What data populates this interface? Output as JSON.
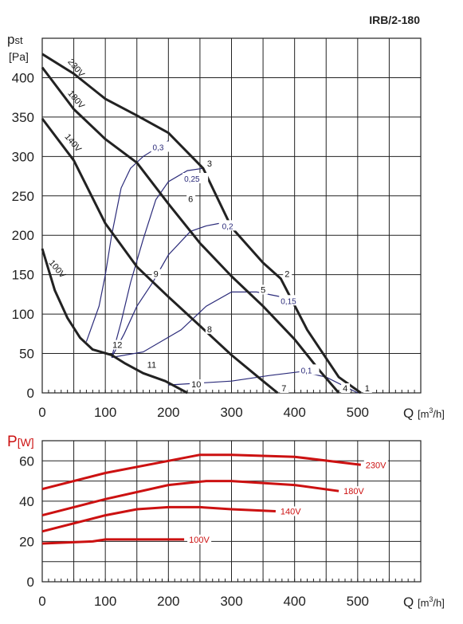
{
  "model_label": "IRB/2-180",
  "chart_data": [
    {
      "type": "line",
      "ylabel_main": "p",
      "ylabel_sub": "st",
      "yunit": "[Pa]",
      "xlabel": "Q [m³/h]",
      "xlabel_q": "Q",
      "xlabel_unit": "[m",
      "xlabel_exp": "3",
      "xlabel_tail": "/h]",
      "xlim": [
        0,
        600
      ],
      "ylim": [
        0,
        450
      ],
      "xticks": [
        0,
        100,
        200,
        300,
        400,
        500
      ],
      "yticks": [
        0,
        50,
        100,
        150,
        200,
        250,
        300,
        350,
        400
      ],
      "grid": true,
      "fan_curves": [
        {
          "name": "230V",
          "color": "#222222",
          "points": [
            [
              0,
              430
            ],
            [
              50,
              405
            ],
            [
              100,
              373
            ],
            [
              150,
              352
            ],
            [
              200,
              330
            ],
            [
              255,
              285
            ],
            [
              300,
              210
            ],
            [
              350,
              165
            ],
            [
              378,
              145
            ],
            [
              420,
              80
            ],
            [
              470,
              20
            ],
            [
              505,
              0
            ]
          ]
        },
        {
          "name": "180V",
          "color": "#222222",
          "points": [
            [
              0,
              413
            ],
            [
              50,
              360
            ],
            [
              100,
              322
            ],
            [
              150,
              292
            ],
            [
              200,
              240
            ],
            [
              250,
              190
            ],
            [
              300,
              148
            ],
            [
              350,
              110
            ],
            [
              400,
              68
            ],
            [
              440,
              28
            ],
            [
              470,
              0
            ]
          ]
        },
        {
          "name": "140V",
          "color": "#222222",
          "points": [
            [
              0,
              348
            ],
            [
              50,
              295
            ],
            [
              100,
              215
            ],
            [
              150,
              160
            ],
            [
              200,
              122
            ],
            [
              250,
              85
            ],
            [
              300,
              48
            ],
            [
              350,
              15
            ],
            [
              373,
              0
            ]
          ]
        },
        {
          "name": "100V",
          "color": "#222222",
          "points": [
            [
              0,
              183
            ],
            [
              20,
              130
            ],
            [
              40,
              95
            ],
            [
              60,
              70
            ],
            [
              80,
              55
            ],
            [
              110,
              48
            ],
            [
              130,
              38
            ],
            [
              160,
              25
            ],
            [
              195,
              15
            ],
            [
              230,
              0
            ]
          ]
        }
      ],
      "system_curves": [
        {
          "name": "0,1",
          "color": "#2b2b7a",
          "points": [
            [
              200,
              10
            ],
            [
              240,
              12
            ],
            [
              300,
              15
            ],
            [
              360,
              22
            ],
            [
              410,
              27
            ],
            [
              450,
              20
            ],
            [
              500,
              0
            ]
          ]
        },
        {
          "name": "0,15",
          "color": "#2b2b7a",
          "points": [
            [
              110,
              45
            ],
            [
              160,
              52
            ],
            [
              220,
              80
            ],
            [
              260,
              110
            ],
            [
              300,
              128
            ],
            [
              340,
              128
            ],
            [
              378,
              122
            ]
          ]
        },
        {
          "name": "0,2",
          "color": "#2b2b7a",
          "points": [
            [
              110,
              45
            ],
            [
              130,
              75
            ],
            [
              150,
              110
            ],
            [
              175,
              140
            ],
            [
              200,
              175
            ],
            [
              235,
              205
            ],
            [
              260,
              212
            ],
            [
              280,
              215
            ]
          ]
        },
        {
          "name": "0,25",
          "color": "#2b2b7a",
          "points": [
            [
              110,
              45
            ],
            [
              125,
              90
            ],
            [
              140,
              140
            ],
            [
              160,
              195
            ],
            [
              180,
              245
            ],
            [
              200,
              268
            ],
            [
              230,
              282
            ],
            [
              255,
              285
            ]
          ]
        },
        {
          "name": "0,3",
          "color": "#2b2b7a",
          "points": [
            [
              70,
              65
            ],
            [
              90,
              110
            ],
            [
              100,
              150
            ],
            [
              110,
              200
            ],
            [
              125,
              260
            ],
            [
              140,
              285
            ],
            [
              160,
              300
            ],
            [
              200,
              320
            ]
          ]
        }
      ],
      "system_labels": [
        {
          "text": "0,1",
          "x": 410,
          "y": 27
        },
        {
          "text": "0,15",
          "x": 378,
          "y": 115
        },
        {
          "text": "0,2",
          "x": 285,
          "y": 210
        },
        {
          "text": "0,25",
          "x": 225,
          "y": 270
        },
        {
          "text": "0,3",
          "x": 175,
          "y": 310
        }
      ],
      "voltage_labels": [
        {
          "text": "230V",
          "x": 40,
          "y": 420
        },
        {
          "text": "180V",
          "x": 40,
          "y": 380
        },
        {
          "text": "140V",
          "x": 35,
          "y": 325
        },
        {
          "text": "100V",
          "x": 10,
          "y": 165
        }
      ],
      "operating_points": [
        {
          "label": "1",
          "x": 505,
          "y": 0
        },
        {
          "label": "2",
          "x": 378,
          "y": 145
        },
        {
          "label": "3",
          "x": 255,
          "y": 285
        },
        {
          "label": "4",
          "x": 470,
          "y": 0
        },
        {
          "label": "5",
          "x": 340,
          "y": 125
        },
        {
          "label": "6",
          "x": 225,
          "y": 240
        },
        {
          "label": "7",
          "x": 373,
          "y": 0
        },
        {
          "label": "8",
          "x": 255,
          "y": 75
        },
        {
          "label": "9",
          "x": 170,
          "y": 145
        },
        {
          "label": "10",
          "x": 230,
          "y": 5
        },
        {
          "label": "11",
          "x": 160,
          "y": 30
        },
        {
          "label": "12",
          "x": 105,
          "y": 55
        }
      ]
    },
    {
      "type": "line",
      "ylabel_main": "P",
      "yunit": "[W]",
      "xlabel": "Q [m³/h]",
      "xlim": [
        0,
        600
      ],
      "ylim": [
        0,
        70
      ],
      "xticks": [
        0,
        100,
        200,
        300,
        400,
        500
      ],
      "yticks": [
        0,
        20,
        40,
        60
      ],
      "grid": true,
      "power_curves": [
        {
          "name": "230V",
          "color": "#cc1111",
          "points": [
            [
              0,
              46
            ],
            [
              100,
              54
            ],
            [
              200,
              60
            ],
            [
              250,
              63
            ],
            [
              300,
              63
            ],
            [
              400,
              62
            ],
            [
              505,
              58
            ]
          ]
        },
        {
          "name": "180V",
          "color": "#cc1111",
          "points": [
            [
              0,
              33
            ],
            [
              100,
              41
            ],
            [
              200,
              48
            ],
            [
              260,
              50
            ],
            [
              300,
              50
            ],
            [
              400,
              48
            ],
            [
              470,
              45
            ]
          ]
        },
        {
          "name": "140V",
          "color": "#cc1111",
          "points": [
            [
              0,
              25
            ],
            [
              100,
              33
            ],
            [
              150,
              36
            ],
            [
              200,
              37
            ],
            [
              250,
              37
            ],
            [
              300,
              36
            ],
            [
              370,
              35
            ]
          ]
        },
        {
          "name": "100V",
          "color": "#cc1111",
          "points": [
            [
              0,
              19
            ],
            [
              80,
              20
            ],
            [
              100,
              21
            ],
            [
              150,
              21
            ],
            [
              200,
              21
            ],
            [
              225,
              21
            ]
          ]
        }
      ]
    }
  ],
  "colors": {
    "grid": "#222222",
    "fan_curve": "#222222",
    "system_curve": "#2b2b7a",
    "power_curve": "#cc1111",
    "power_axis_label": "#cc1111"
  }
}
